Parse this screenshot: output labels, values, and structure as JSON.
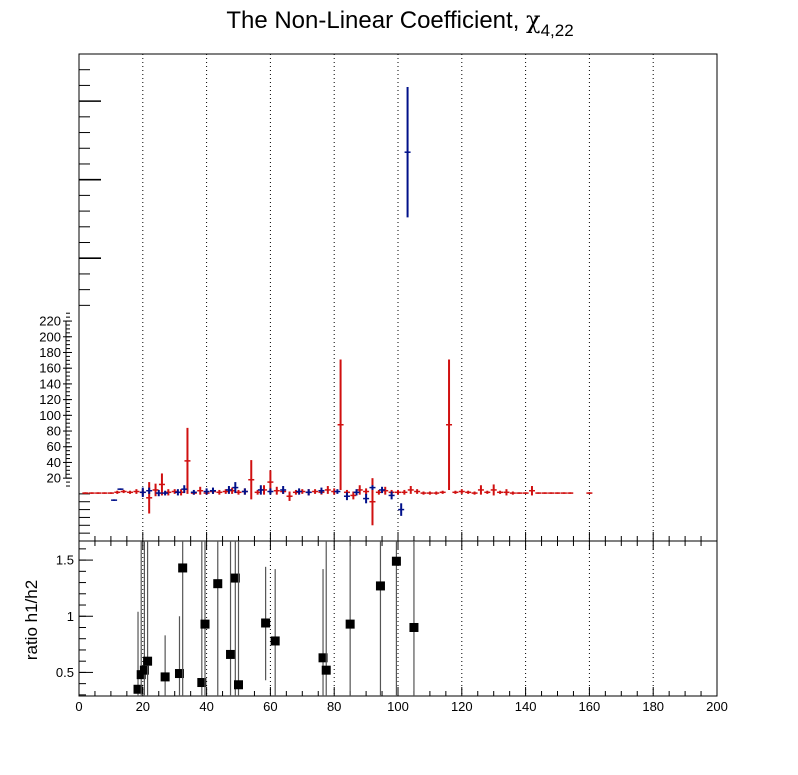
{
  "chart_data": [
    {
      "type": "scatter",
      "title": "The Non-Linear Coefficient, ",
      "title_symbol": "χ",
      "title_subscript": "4,22",
      "xlim": [
        0,
        200
      ],
      "ylim": [
        -60,
        560
      ],
      "y_tick_labels": [
        20,
        40,
        60,
        80,
        100,
        120,
        140,
        160,
        180,
        200,
        220
      ],
      "grid_x": true,
      "series": [
        {
          "color": "#d01010",
          "points": [
            {
              "x": 2,
              "y": 1,
              "err": 1
            },
            {
              "x": 4,
              "y": 1,
              "err": 1
            },
            {
              "x": 6,
              "y": 1,
              "err": 1
            },
            {
              "x": 8,
              "y": 1,
              "err": 1
            },
            {
              "x": 10,
              "y": 1,
              "err": 1
            },
            {
              "x": 12,
              "y": 2,
              "err": 2
            },
            {
              "x": 14,
              "y": 3,
              "err": 2
            },
            {
              "x": 16,
              "y": 2,
              "err": 2
            },
            {
              "x": 18,
              "y": 3,
              "err": 3
            },
            {
              "x": 20,
              "y": 2,
              "err": 4
            },
            {
              "x": 22,
              "y": -5,
              "err": 20
            },
            {
              "x": 24,
              "y": 5,
              "err": 8
            },
            {
              "x": 26,
              "y": 12,
              "err": 14
            },
            {
              "x": 28,
              "y": 2,
              "err": 4
            },
            {
              "x": 30,
              "y": 3,
              "err": 3
            },
            {
              "x": 32,
              "y": 2,
              "err": 4
            },
            {
              "x": 34,
              "y": 42,
              "err": 42
            },
            {
              "x": 36,
              "y": 1,
              "err": 2
            },
            {
              "x": 38,
              "y": 4,
              "err": 5
            },
            {
              "x": 40,
              "y": 1,
              "err": 2
            },
            {
              "x": 42,
              "y": 3,
              "err": 3
            },
            {
              "x": 44,
              "y": 2,
              "err": 3
            },
            {
              "x": 46,
              "y": 3,
              "err": 3
            },
            {
              "x": 48,
              "y": 4,
              "err": 4
            },
            {
              "x": 50,
              "y": 2,
              "err": 3
            },
            {
              "x": 52,
              "y": 3,
              "err": 4
            },
            {
              "x": 54,
              "y": 18,
              "err": 25
            },
            {
              "x": 56,
              "y": 2,
              "err": 3
            },
            {
              "x": 58,
              "y": 5,
              "err": 6
            },
            {
              "x": 60,
              "y": 15,
              "err": 15
            },
            {
              "x": 62,
              "y": 4,
              "err": 5
            },
            {
              "x": 64,
              "y": 3,
              "err": 3
            },
            {
              "x": 66,
              "y": -3,
              "err": 6
            },
            {
              "x": 68,
              "y": 2,
              "err": 3
            },
            {
              "x": 70,
              "y": 3,
              "err": 3
            },
            {
              "x": 72,
              "y": 2,
              "err": 4
            },
            {
              "x": 74,
              "y": 3,
              "err": 3
            },
            {
              "x": 76,
              "y": 2,
              "err": 3
            },
            {
              "x": 78,
              "y": 5,
              "err": 5
            },
            {
              "x": 80,
              "y": 3,
              "err": 4
            },
            {
              "x": 82,
              "y": 88,
              "err": 83
            },
            {
              "x": 84,
              "y": 2,
              "err": 3
            },
            {
              "x": 86,
              "y": -2,
              "err": 5
            },
            {
              "x": 88,
              "y": 5,
              "err": 6
            },
            {
              "x": 90,
              "y": 3,
              "err": 4
            },
            {
              "x": 92,
              "y": -10,
              "err": 30
            },
            {
              "x": 94,
              "y": 2,
              "err": 3
            },
            {
              "x": 96,
              "y": 4,
              "err": 5
            },
            {
              "x": 98,
              "y": 2,
              "err": 3
            },
            {
              "x": 100,
              "y": 2,
              "err": 3
            },
            {
              "x": 102,
              "y": 2,
              "err": 3
            },
            {
              "x": 104,
              "y": 5,
              "err": 5
            },
            {
              "x": 106,
              "y": 3,
              "err": 3
            },
            {
              "x": 108,
              "y": 1,
              "err": 2
            },
            {
              "x": 110,
              "y": 1,
              "err": 2
            },
            {
              "x": 112,
              "y": 1,
              "err": 2
            },
            {
              "x": 114,
              "y": 2,
              "err": 2
            },
            {
              "x": 116,
              "y": 88,
              "err": 83
            },
            {
              "x": 118,
              "y": 2,
              "err": 2
            },
            {
              "x": 120,
              "y": 3,
              "err": 3
            },
            {
              "x": 122,
              "y": 2,
              "err": 2
            },
            {
              "x": 124,
              "y": 1,
              "err": 2
            },
            {
              "x": 126,
              "y": 5,
              "err": 6
            },
            {
              "x": 128,
              "y": 2,
              "err": 2
            },
            {
              "x": 130,
              "y": 5,
              "err": 7
            },
            {
              "x": 132,
              "y": 2,
              "err": 2
            },
            {
              "x": 134,
              "y": 2,
              "err": 4
            },
            {
              "x": 136,
              "y": 1,
              "err": 2
            },
            {
              "x": 138,
              "y": 1,
              "err": 1
            },
            {
              "x": 140,
              "y": 1,
              "err": 1
            },
            {
              "x": 142,
              "y": 4,
              "err": 6
            },
            {
              "x": 144,
              "y": 1,
              "err": 1
            },
            {
              "x": 146,
              "y": 1,
              "err": 1
            },
            {
              "x": 148,
              "y": 1,
              "err": 1
            },
            {
              "x": 150,
              "y": 1,
              "err": 1
            },
            {
              "x": 152,
              "y": 1,
              "err": 1
            },
            {
              "x": 154,
              "y": 1,
              "err": 1
            },
            {
              "x": 160,
              "y": 1,
              "err": 1
            }
          ]
        },
        {
          "color": "#00108a",
          "points": [
            {
              "x": 11,
              "y": -8,
              "err": 1
            },
            {
              "x": 13,
              "y": 6,
              "err": 1
            },
            {
              "x": 20,
              "y": 2,
              "err": 6
            },
            {
              "x": 22,
              "y": 4,
              "err": 4
            },
            {
              "x": 25,
              "y": 1,
              "err": 4
            },
            {
              "x": 27,
              "y": 1,
              "err": 3
            },
            {
              "x": 31,
              "y": 2,
              "err": 4
            },
            {
              "x": 33,
              "y": 6,
              "err": 5
            },
            {
              "x": 36,
              "y": 2,
              "err": 3
            },
            {
              "x": 40,
              "y": 3,
              "err": 4
            },
            {
              "x": 42,
              "y": 4,
              "err": 4
            },
            {
              "x": 47,
              "y": 5,
              "err": 5
            },
            {
              "x": 49,
              "y": 8,
              "err": 7
            },
            {
              "x": 52,
              "y": 3,
              "err": 4
            },
            {
              "x": 57,
              "y": 5,
              "err": 6
            },
            {
              "x": 60,
              "y": 3,
              "err": 4
            },
            {
              "x": 64,
              "y": 5,
              "err": 5
            },
            {
              "x": 69,
              "y": 3,
              "err": 4
            },
            {
              "x": 72,
              "y": 2,
              "err": 4
            },
            {
              "x": 76,
              "y": 4,
              "err": 4
            },
            {
              "x": 81,
              "y": 3,
              "err": 3
            },
            {
              "x": 84,
              "y": -3,
              "err": 5
            },
            {
              "x": 87,
              "y": 2,
              "err": 4
            },
            {
              "x": 90,
              "y": -6,
              "err": 6
            },
            {
              "x": 92,
              "y": 8,
              "err": 3
            },
            {
              "x": 95,
              "y": 5,
              "err": 4
            },
            {
              "x": 98,
              "y": -2,
              "err": 5
            },
            {
              "x": 101,
              "y": -20,
              "err": 8
            },
            {
              "x": 103,
              "y": 435,
              "err": 83
            }
          ]
        }
      ]
    },
    {
      "type": "scatter",
      "ylabel": "ratio h1/h2",
      "xlim": [
        0,
        200
      ],
      "ylim": [
        0.29,
        1.67
      ],
      "x_ticks": [
        0,
        20,
        40,
        60,
        80,
        100,
        120,
        140,
        160,
        180,
        200
      ],
      "y_ticks": [
        0.5,
        1,
        1.5
      ],
      "y_tick_labels": [
        "0.5",
        "1",
        "1.5"
      ],
      "grid_x": true,
      "marker": "square",
      "points": [
        {
          "x": 18.5,
          "y": 0.35,
          "lo": 0.29,
          "hi": 1.04
        },
        {
          "x": 19.5,
          "y": 0.48,
          "lo": 0.29,
          "hi": 1.67
        },
        {
          "x": 20.5,
          "y": 0.52,
          "lo": 0.29,
          "hi": 1.67
        },
        {
          "x": 21.5,
          "y": 0.6,
          "lo": 0.29,
          "hi": 1.67
        },
        {
          "x": 27,
          "y": 0.46,
          "lo": 0.29,
          "hi": 0.83
        },
        {
          "x": 31.5,
          "y": 0.49,
          "lo": 0.29,
          "hi": 1.0
        },
        {
          "x": 32.5,
          "y": 1.43,
          "lo": 0.29,
          "hi": 1.67
        },
        {
          "x": 38.5,
          "y": 0.41,
          "lo": 0.29,
          "hi": 1.67
        },
        {
          "x": 39.5,
          "y": 0.93,
          "lo": 0.29,
          "hi": 1.67
        },
        {
          "x": 43.5,
          "y": 1.29,
          "lo": 0.29,
          "hi": 1.67
        },
        {
          "x": 47.5,
          "y": 0.66,
          "lo": 0.29,
          "hi": 1.67
        },
        {
          "x": 49,
          "y": 1.34,
          "lo": 0.29,
          "hi": 1.67
        },
        {
          "x": 50,
          "y": 0.39,
          "lo": 0.29,
          "hi": 1.67
        },
        {
          "x": 58.5,
          "y": 0.94,
          "lo": 0.43,
          "hi": 1.44
        },
        {
          "x": 61.5,
          "y": 0.78,
          "lo": 0.29,
          "hi": 1.42
        },
        {
          "x": 76.5,
          "y": 0.63,
          "lo": 0.29,
          "hi": 1.42
        },
        {
          "x": 77.5,
          "y": 0.52,
          "lo": 0.29,
          "hi": 1.67
        },
        {
          "x": 85,
          "y": 0.93,
          "lo": 0.29,
          "hi": 1.67
        },
        {
          "x": 94.5,
          "y": 1.27,
          "lo": 0.29,
          "hi": 1.67
        },
        {
          "x": 99.5,
          "y": 1.49,
          "lo": 0.29,
          "hi": 1.67
        },
        {
          "x": 105,
          "y": 0.9,
          "lo": 0.29,
          "hi": 1.67
        }
      ]
    }
  ]
}
